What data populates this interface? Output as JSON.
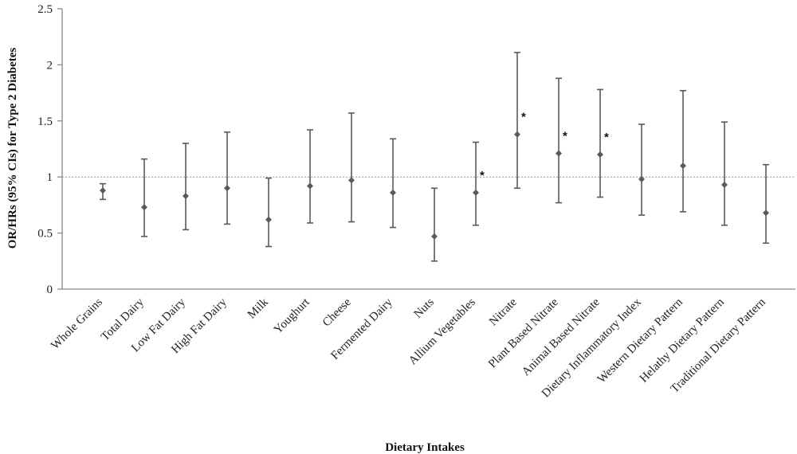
{
  "chart_data": {
    "type": "scatter",
    "title": "",
    "xlabel": "Dietary Intakes",
    "ylabel": "OR/HRs (95% CIs) for Type 2 Diabetes",
    "ylim": [
      0,
      2.5
    ],
    "yticks": [
      "0",
      "0.5",
      "1",
      "1.5",
      "2",
      "2.5"
    ],
    "reference_line": 1,
    "grid": false,
    "legend": "none",
    "colors": {
      "marker": "#5a5a5a",
      "axis": "#888888",
      "refline": "#999999"
    },
    "categories": [
      "Whole Grains",
      "Total Dairy",
      "Low Fat Dairy",
      "High Fat Dairy",
      "Milk",
      "Youghurt",
      "Cheese",
      "Fermented Dairy",
      "Nuts",
      "Allium Vegetables",
      "Nitrate",
      "Plant Based Nitrate",
      "Animal Based Nitrate",
      "Dietary Inflammatory Index",
      "Western Dietary Pattern",
      "Helathy Dietary Pattern",
      "Traditional Dietary Pattern"
    ],
    "points": [
      {
        "value": 0.88,
        "lower": 0.8,
        "upper": 0.94,
        "mark": ""
      },
      {
        "value": 0.73,
        "lower": 0.47,
        "upper": 1.16,
        "mark": ""
      },
      {
        "value": 0.83,
        "lower": 0.53,
        "upper": 1.3,
        "mark": ""
      },
      {
        "value": 0.9,
        "lower": 0.58,
        "upper": 1.4,
        "mark": ""
      },
      {
        "value": 0.62,
        "lower": 0.38,
        "upper": 0.99,
        "mark": ""
      },
      {
        "value": 0.92,
        "lower": 0.59,
        "upper": 1.42,
        "mark": ""
      },
      {
        "value": 0.97,
        "lower": 0.6,
        "upper": 1.57,
        "mark": ""
      },
      {
        "value": 0.86,
        "lower": 0.55,
        "upper": 1.34,
        "mark": ""
      },
      {
        "value": 0.47,
        "lower": 0.25,
        "upper": 0.9,
        "mark": ""
      },
      {
        "value": 0.86,
        "lower": 0.57,
        "upper": 1.31,
        "mark": "*"
      },
      {
        "value": 1.38,
        "lower": 0.9,
        "upper": 2.11,
        "mark": "*"
      },
      {
        "value": 1.21,
        "lower": 0.77,
        "upper": 1.88,
        "mark": "*"
      },
      {
        "value": 1.2,
        "lower": 0.82,
        "upper": 1.78,
        "mark": "*"
      },
      {
        "value": 0.98,
        "lower": 0.66,
        "upper": 1.47,
        "mark": ""
      },
      {
        "value": 1.1,
        "lower": 0.69,
        "upper": 1.77,
        "mark": ""
      },
      {
        "value": 0.93,
        "lower": 0.57,
        "upper": 1.49,
        "mark": ""
      },
      {
        "value": 0.68,
        "lower": 0.41,
        "upper": 1.11,
        "mark": ""
      }
    ]
  }
}
